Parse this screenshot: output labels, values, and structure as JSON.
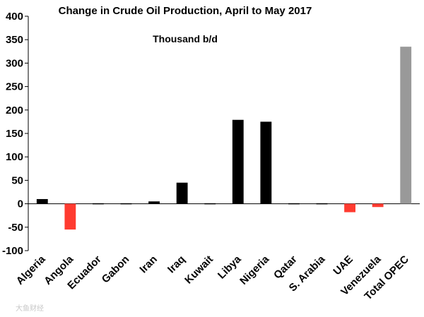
{
  "chart_data": {
    "type": "bar",
    "title": "Change in Crude Oil Production, April to May 2017",
    "subtitle": "Thousand b/d",
    "categories": [
      "Algeria",
      "Angola",
      "Ecuador",
      "Gabon",
      "Iran",
      "Iraq",
      "Kuwait",
      "Libya",
      "Nigeria",
      "Qatar",
      "S. Arabia",
      "UAE",
      "Venezuela",
      "Total OPEC"
    ],
    "values": [
      10,
      -55,
      1,
      -2,
      5,
      45,
      0,
      179,
      175,
      1,
      1,
      -18,
      -7,
      335
    ],
    "bar_colors": [
      "#000000",
      "#ff3b30",
      "#000000",
      "#000000",
      "#000000",
      "#000000",
      "#000000",
      "#000000",
      "#000000",
      "#000000",
      "#000000",
      "#ff3b30",
      "#ff3b30",
      "#999999"
    ],
    "ylim": [
      -100,
      400
    ],
    "yticks": [
      -100,
      -50,
      0,
      50,
      100,
      150,
      200,
      250,
      300,
      350,
      400
    ],
    "xlabel": "",
    "ylabel": "",
    "grid": false,
    "legend": "none"
  },
  "watermark": "大鱼财经"
}
